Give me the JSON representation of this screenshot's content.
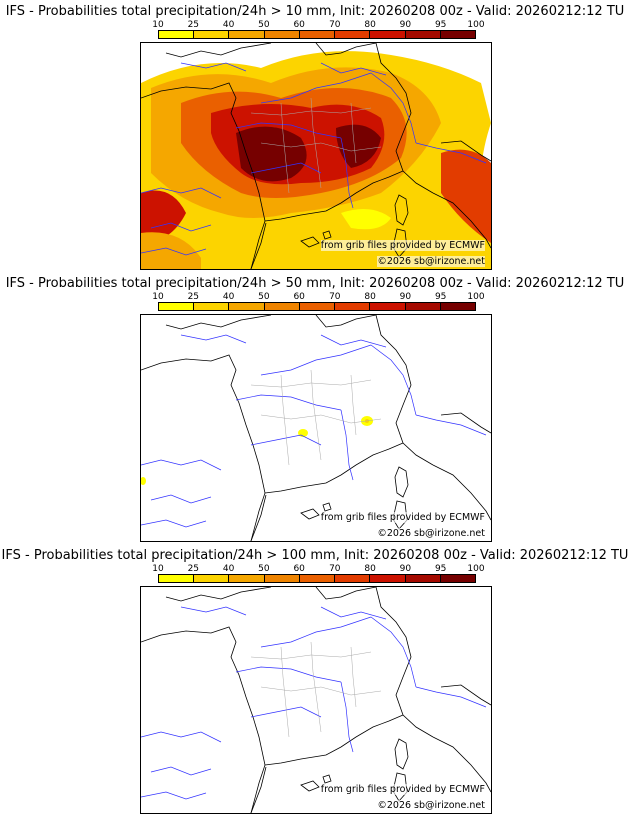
{
  "colors": {
    "bins": [
      "#ffff00",
      "#fcd400",
      "#f5a700",
      "#ef8400",
      "#ea6000",
      "#e23c00",
      "#cc1200",
      "#a50a00",
      "#760000",
      "#4c0000"
    ],
    "border": "#000000",
    "rivers": "#3333ff",
    "admin": "#aaaaaa"
  },
  "legend": {
    "ticks": [
      "10",
      "25",
      "40",
      "50",
      "60",
      "70",
      "80",
      "90",
      "95",
      "100"
    ]
  },
  "panels": [
    {
      "title": "IFS - Probabilities total precipitation/24h > 10 mm, Init: 20260208 00z - Valid: 20260212:12 TU",
      "source_credit": "from grib files provided by ECMWF",
      "copyright": "©2026 sb@irizone.net"
    },
    {
      "title": "IFS - Probabilities total precipitation/24h > 50 mm, Init: 20260208 00z - Valid: 20260212:12 TU",
      "source_credit": "from grib files provided by ECMWF",
      "copyright": "©2026 sb@irizone.net"
    },
    {
      "title": "IFS - Probabilities total precipitation/24h > 100 mm, Init: 20260208 00z - Valid: 20260212:12 TU",
      "source_credit": "from grib files provided by ECMWF",
      "copyright": "©2026 sb@irizone.net"
    }
  ]
}
